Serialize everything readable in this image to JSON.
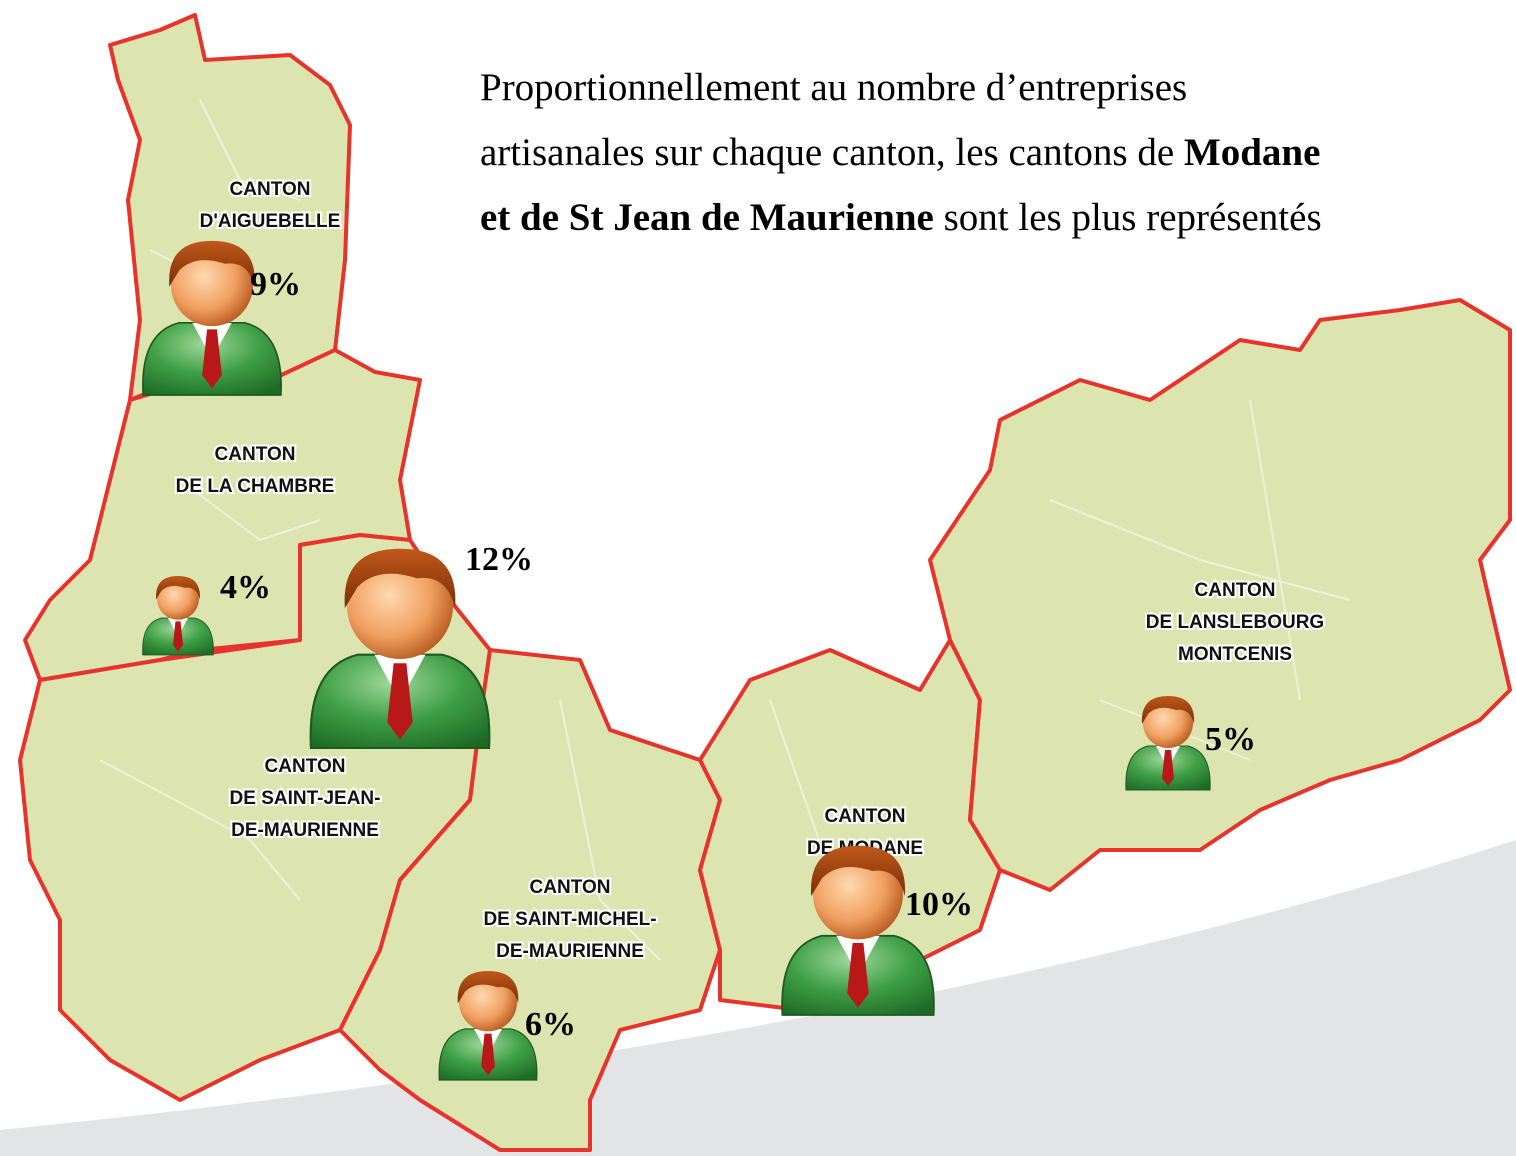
{
  "text": {
    "lines": [
      [
        {
          "text": "Proportionnellement au nombre d’entreprises",
          "bold": false
        }
      ],
      [
        {
          "text": "artisanales sur chaque canton, les cantons de ",
          "bold": false
        },
        {
          "text": "Modane",
          "bold": true
        }
      ],
      [
        {
          "text": "et de St Jean de Maurienne",
          "bold": true
        },
        {
          "text": " sont les plus représentés",
          "bold": false
        }
      ]
    ]
  },
  "cantons": [
    {
      "name_lines": [
        "CANTON",
        "D'AIGUEBELLE"
      ],
      "share": 9,
      "share_label": "9%"
    },
    {
      "name_lines": [
        "CANTON",
        "DE LA CHAMBRE"
      ],
      "share": 4,
      "share_label": "4%"
    },
    {
      "name_lines": [
        "CANTON",
        "DE SAINT-JEAN-",
        "DE-MAURIENNE"
      ],
      "share": 12,
      "share_label": "12%"
    },
    {
      "name_lines": [
        "CANTON",
        "DE SAINT-MICHEL-",
        "DE-MAURIENNE"
      ],
      "share": 6,
      "share_label": "6%"
    },
    {
      "name_lines": [
        "CANTON",
        "DE MODANE"
      ],
      "share": 10,
      "share_label": "10%"
    },
    {
      "name_lines": [
        "CANTON",
        "DE LANSLEBOURG",
        "MONTCENIS"
      ],
      "share": 5,
      "share_label": "5%"
    }
  ]
}
